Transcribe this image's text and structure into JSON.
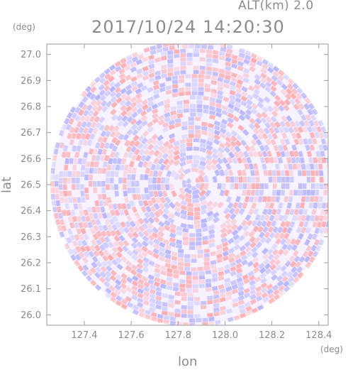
{
  "header": {
    "alt_label": "ALT(km)  2.0",
    "timestamp": "2017/10/24 14:20:30"
  },
  "chart_data": {
    "type": "heatmap",
    "title": "2017/10/24 14:20:30",
    "subtitle": "ALT(km)  2.0",
    "xlabel": "lon",
    "ylabel": "lat",
    "x_unit": "(deg)",
    "y_unit": "(deg)",
    "xlim": [
      127.24,
      128.44
    ],
    "ylim": [
      25.96,
      27.04
    ],
    "x_ticks": [
      127.4,
      127.6,
      127.8,
      128.0,
      128.2,
      128.4
    ],
    "x_tick_labels": [
      "127.4",
      "127.6",
      "127.8",
      "128.0",
      "128.2",
      "128.4"
    ],
    "y_ticks": [
      26.0,
      26.1,
      26.2,
      26.3,
      26.4,
      26.5,
      26.6,
      26.7,
      26.8,
      26.9,
      27.0
    ],
    "y_tick_labels": [
      "26.0",
      "26.1",
      "26.2",
      "26.3",
      "26.4",
      "26.5",
      "26.6",
      "26.7",
      "26.8",
      "26.9",
      "27.0"
    ],
    "radar_center": {
      "lon": 127.865,
      "lat": 26.505
    },
    "radar_radius_lon": 0.6,
    "colormap": {
      "positive": "#ff9c9c",
      "negative": "#a8a8ff",
      "neutral": "#f6f2ff"
    },
    "grid": false
  }
}
